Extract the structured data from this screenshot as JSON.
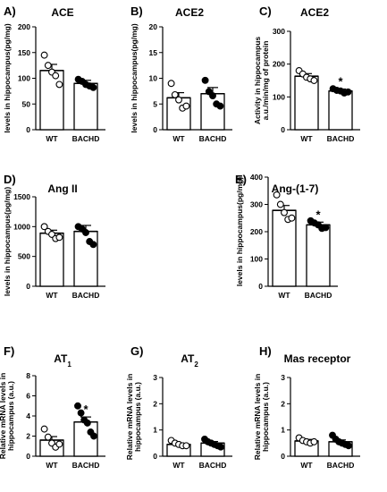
{
  "chart_data": [
    {
      "panel": "A)",
      "type": "bar",
      "title": "ACE",
      "title_sub": "",
      "ylabel": [
        "levels in hippocampus(pg/mg)"
      ],
      "ylim": [
        0,
        200
      ],
      "yticks": [
        "0",
        "50",
        "100",
        "150",
        "200"
      ],
      "categories": [
        "WT",
        "BACHD"
      ],
      "values": [
        115,
        90
      ],
      "errors": [
        12,
        6
      ],
      "points": [
        [
          145,
          125,
          112,
          105,
          88
        ],
        [
          98,
          94,
          88,
          85,
          82
        ]
      ],
      "filled": [
        false,
        true
      ],
      "significance": [
        "",
        ""
      ]
    },
    {
      "panel": "B)",
      "type": "bar",
      "title": "ACE2",
      "title_sub": "",
      "ylabel": [
        "levels in hippocampus(pg/mg)"
      ],
      "ylim": [
        0,
        20
      ],
      "yticks": [
        "0",
        "5",
        "10",
        "15",
        "20"
      ],
      "categories": [
        "WT",
        "BACHD"
      ],
      "values": [
        6.2,
        7.0
      ],
      "errors": [
        1.0,
        1.2
      ],
      "points": [
        [
          9.0,
          6.8,
          5.8,
          4.2,
          4.6
        ],
        [
          9.6,
          7.4,
          6.6,
          5.0,
          4.6
        ]
      ],
      "filled": [
        false,
        true
      ],
      "significance": [
        "",
        ""
      ]
    },
    {
      "panel": "C)",
      "type": "bar",
      "title": "ACE2",
      "title_sub": "",
      "ylabel": [
        "Activity in hippocampus",
        "a.u./min/mg of protein"
      ],
      "ylim": [
        0,
        300
      ],
      "yticks": [
        "0",
        "100",
        "200",
        "300"
      ],
      "categories": [
        "WT",
        "BACHD"
      ],
      "values": [
        163,
        118
      ],
      "errors": [
        8,
        6
      ],
      "points": [
        [
          180,
          170,
          160,
          155,
          150
        ],
        [
          125,
          120,
          118,
          112,
          115
        ]
      ],
      "filled": [
        false,
        true
      ],
      "significance": [
        "",
        "*"
      ]
    },
    {
      "panel": "D)",
      "type": "bar",
      "title": "Ang II",
      "title_sub": "",
      "ylabel": [
        "levels in hippocampus(pg/mg)"
      ],
      "ylim": [
        0,
        1500
      ],
      "yticks": [
        "0",
        "500",
        "1000",
        "1500"
      ],
      "categories": [
        "WT",
        "BACHD"
      ],
      "values": [
        890,
        920
      ],
      "errors": [
        50,
        100
      ],
      "points": [
        [
          1000,
          920,
          870,
          800,
          820
        ],
        [
          1000,
          960,
          900,
          750,
          700
        ]
      ],
      "filled": [
        false,
        true
      ],
      "significance": [
        "",
        ""
      ]
    },
    {
      "panel": "E)",
      "type": "bar",
      "title": "Ang-(1-7)",
      "title_sub": "",
      "ylabel": [
        "levels in hippocampus(pg/mg)"
      ],
      "ylim": [
        0,
        400
      ],
      "yticks": [
        "0",
        "100",
        "200",
        "300",
        "400"
      ],
      "categories": [
        "WT",
        "BACHD"
      ],
      "values": [
        278,
        225
      ],
      "errors": [
        18,
        10
      ],
      "points": [
        [
          335,
          300,
          270,
          245,
          250
        ],
        [
          240,
          232,
          225,
          212,
          215
        ]
      ],
      "filled": [
        false,
        true
      ],
      "significance": [
        "",
        "*"
      ]
    },
    {
      "panel": "F)",
      "type": "bar",
      "title": "AT",
      "title_sub": "1",
      "ylabel": [
        "Relative mRNA levels in",
        "hippocampus (a.u.)"
      ],
      "ylim": [
        0,
        8
      ],
      "yticks": [
        "0",
        "2",
        "4",
        "6",
        "8"
      ],
      "categories": [
        "WT",
        "BACHD"
      ],
      "values": [
        1.6,
        3.4
      ],
      "errors": [
        0.35,
        0.5
      ],
      "points": [
        [
          2.7,
          1.9,
          1.3,
          0.9,
          1.2
        ],
        [
          5.0,
          4.3,
          3.6,
          3.3,
          2.4,
          2.0
        ]
      ],
      "filled": [
        false,
        true
      ],
      "significance": [
        "",
        "*"
      ]
    },
    {
      "panel": "G)",
      "type": "bar",
      "title": "AT",
      "title_sub": "2",
      "ylabel": [
        "Relative mRNA levels in",
        "hippocampus (a.u.)"
      ],
      "ylim": [
        0,
        3
      ],
      "yticks": [
        "0",
        "1",
        "2",
        "3"
      ],
      "categories": [
        "WT",
        "BACHD"
      ],
      "values": [
        0.45,
        0.5
      ],
      "errors": [
        0.05,
        0.06
      ],
      "points": [
        [
          0.6,
          0.5,
          0.45,
          0.4,
          0.4
        ],
        [
          0.65,
          0.55,
          0.5,
          0.45,
          0.4,
          0.35
        ]
      ],
      "filled": [
        false,
        true
      ],
      "significance": [
        "",
        ""
      ]
    },
    {
      "panel": "H)",
      "type": "bar",
      "title": "Mas receptor",
      "title_sub": "",
      "ylabel": [
        "Relative mRNA levels in",
        "hippocampus (a.u.)"
      ],
      "ylim": [
        0,
        3
      ],
      "yticks": [
        "0",
        "1",
        "2",
        "3"
      ],
      "categories": [
        "WT",
        "BACHD"
      ],
      "values": [
        0.58,
        0.55
      ],
      "errors": [
        0.06,
        0.07
      ],
      "points": [
        [
          0.7,
          0.6,
          0.55,
          0.5,
          0.55
        ],
        [
          0.8,
          0.65,
          0.55,
          0.5,
          0.45,
          0.4
        ]
      ],
      "filled": [
        false,
        true
      ],
      "significance": [
        "",
        ""
      ]
    }
  ]
}
